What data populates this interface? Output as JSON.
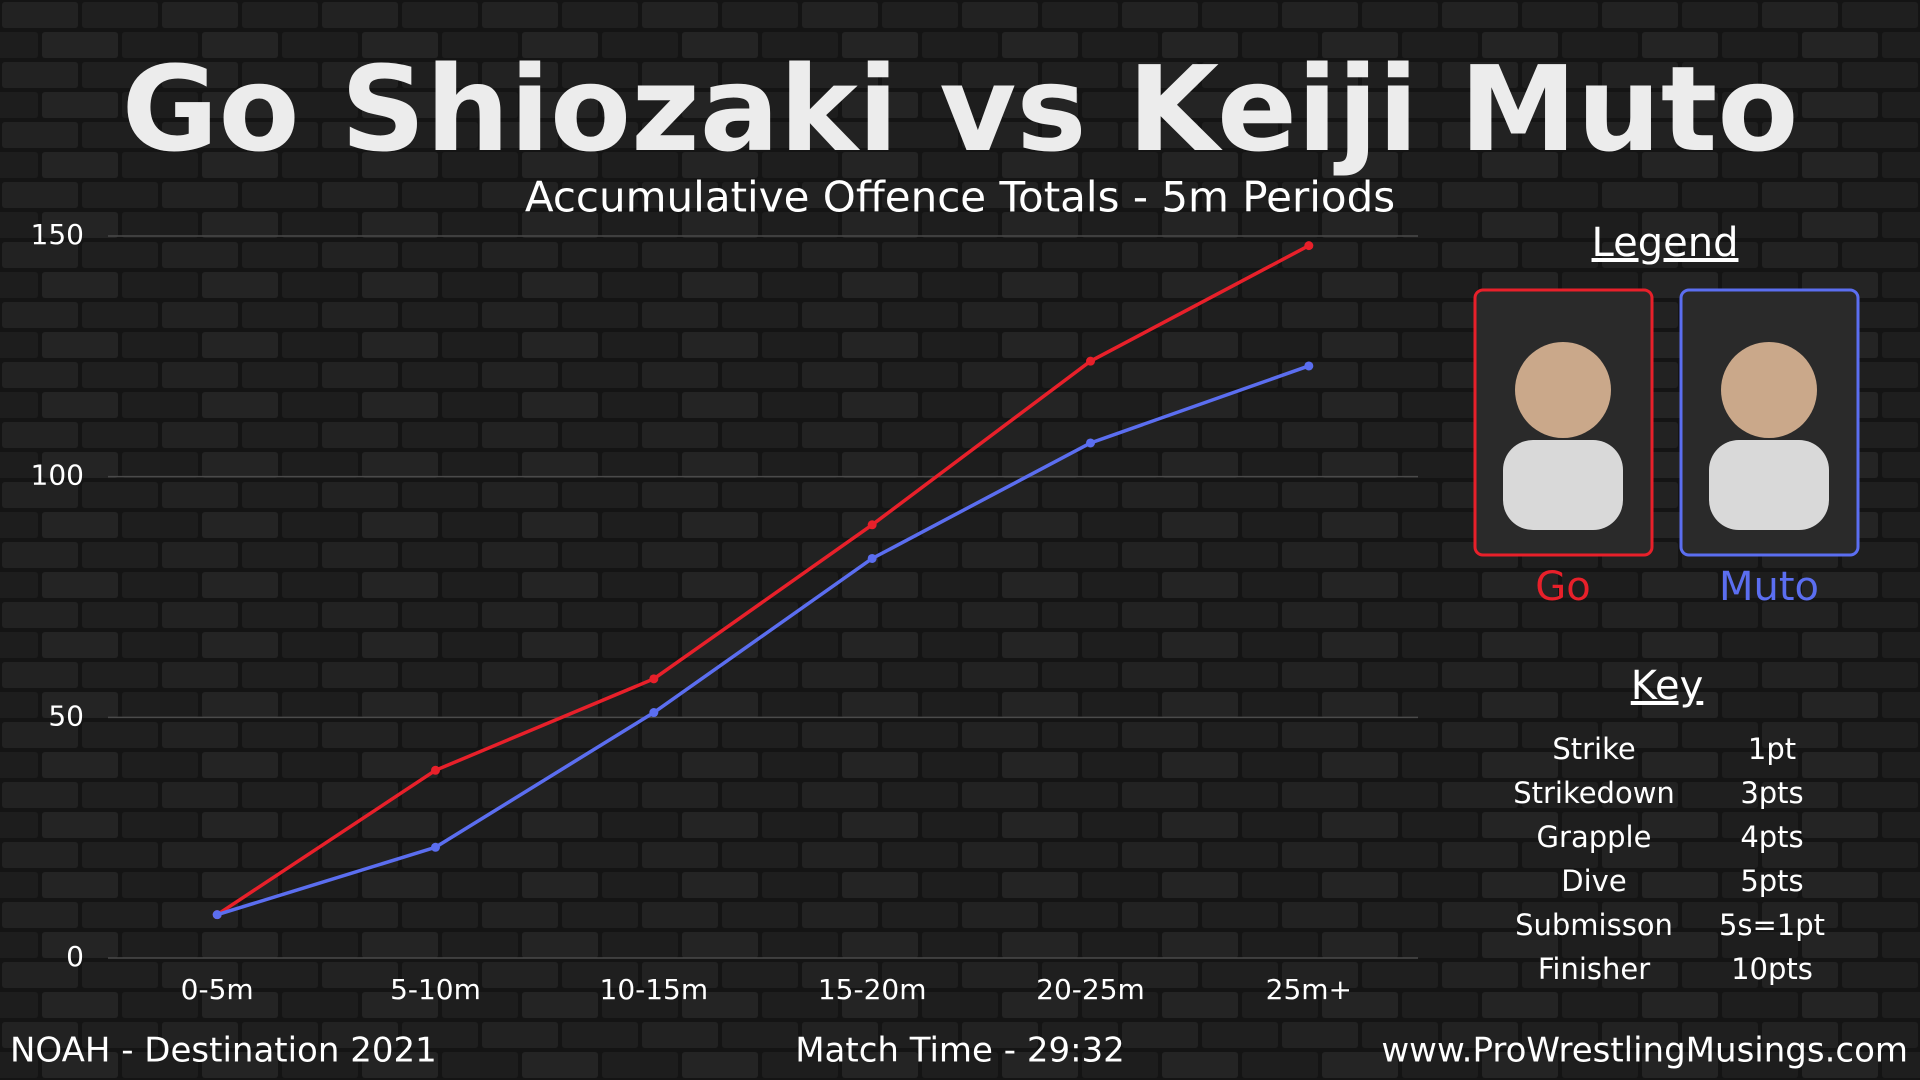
{
  "chart_data": {
    "type": "line",
    "title": "Go Shiozaki vs Keiji Muto",
    "subtitle": "Accumulative Offence Totals - 5m Periods",
    "categories": [
      "0-5m",
      "5-10m",
      "10-15m",
      "15-20m",
      "20-25m",
      "25m+"
    ],
    "series": [
      {
        "name": "Go",
        "color": "#e8202a",
        "values": [
          9,
          39,
          58,
          90,
          124,
          148
        ]
      },
      {
        "name": "Muto",
        "color": "#5b6ef0",
        "values": [
          9,
          23,
          51,
          83,
          107,
          123
        ]
      }
    ],
    "ylim": [
      0,
      150
    ],
    "yticks": [
      0,
      50,
      100,
      150
    ],
    "grid": true,
    "legend_title": "Legend"
  },
  "key": {
    "title": "Key",
    "rows": [
      [
        "Strike",
        "1pt"
      ],
      [
        "Strikedown",
        "3pts"
      ],
      [
        "Grapple",
        "4pts"
      ],
      [
        "Dive",
        "5pts"
      ],
      [
        "Submisson",
        "5s=1pt"
      ],
      [
        "Finisher",
        "10pts"
      ]
    ]
  },
  "footer": {
    "left": "NOAH - Destination 2021",
    "center": "Match Time - 29:32",
    "right": "www.ProWrestlingMusings.com"
  }
}
